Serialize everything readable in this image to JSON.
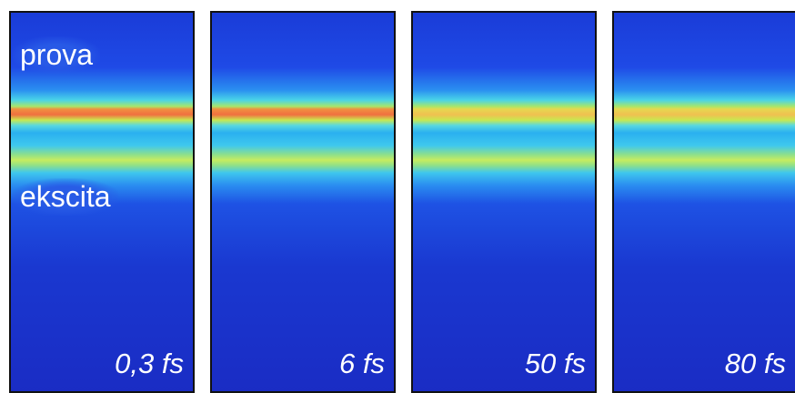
{
  "labels": {
    "probe": "prova",
    "pump": "ekscita"
  },
  "panels": [
    {
      "time": "0,3 fs"
    },
    {
      "time": "6 fs"
    },
    {
      "time": "50 fs"
    },
    {
      "time": "80 fs"
    }
  ]
}
